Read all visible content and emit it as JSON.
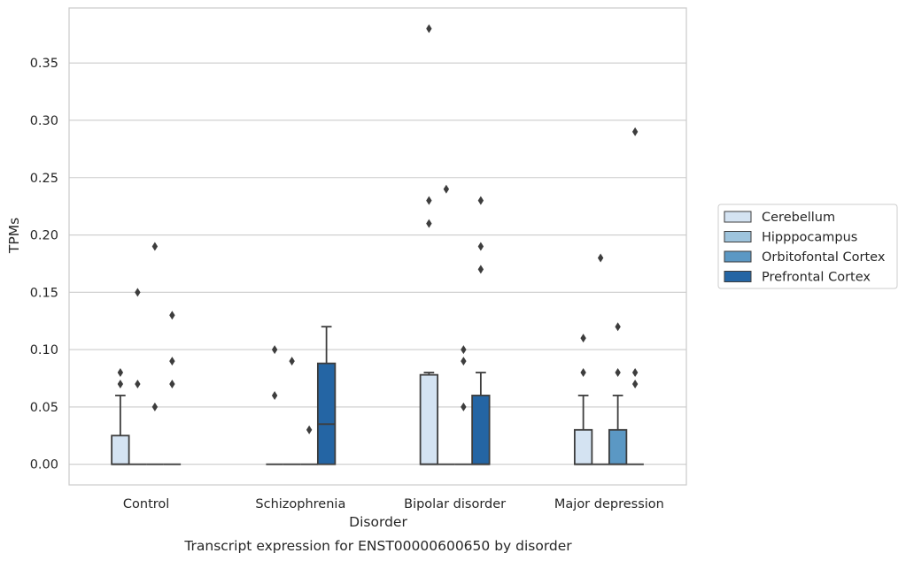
{
  "chart_data": {
    "type": "box",
    "caption": "Transcript expression for ENST00000600650 by disorder",
    "xlabel": "Disorder",
    "ylabel": "TPMs",
    "ylim": [
      -0.018,
      0.398
    ],
    "yticks": [
      "0.00",
      "0.05",
      "0.10",
      "0.15",
      "0.20",
      "0.25",
      "0.30",
      "0.35"
    ],
    "grid": true,
    "legend_position": "right",
    "categories": [
      "Control",
      "Schizophrenia",
      "Bipolar disorder",
      "Major depression"
    ],
    "series": [
      {
        "name": "Cerebellum",
        "color": "#d4e3f2",
        "boxes": [
          {
            "q1": 0.0,
            "median": 0.0,
            "q3": 0.025,
            "whisker_low": 0.0,
            "whisker_high": 0.06,
            "outliers": [
              0.07,
              0.08
            ]
          },
          {
            "q1": 0.0,
            "median": 0.0,
            "q3": 0.0,
            "whisker_low": 0.0,
            "whisker_high": 0.0,
            "outliers": [
              0.06,
              0.1
            ]
          },
          {
            "q1": 0.0,
            "median": 0.0,
            "q3": 0.078,
            "whisker_low": 0.0,
            "whisker_high": 0.08,
            "outliers": [
              0.21,
              0.23,
              0.38
            ]
          },
          {
            "q1": 0.0,
            "median": 0.0,
            "q3": 0.03,
            "whisker_low": 0.0,
            "whisker_high": 0.06,
            "outliers": [
              0.08,
              0.11
            ]
          }
        ]
      },
      {
        "name": "Hipppocampus",
        "color": "#9ec4dd",
        "boxes": [
          {
            "q1": 0.0,
            "median": 0.0,
            "q3": 0.0,
            "whisker_low": 0.0,
            "whisker_high": 0.0,
            "outliers": [
              0.07,
              0.15
            ]
          },
          {
            "q1": 0.0,
            "median": 0.0,
            "q3": 0.0,
            "whisker_low": 0.0,
            "whisker_high": 0.0,
            "outliers": [
              0.09
            ]
          },
          {
            "q1": 0.0,
            "median": 0.0,
            "q3": 0.0,
            "whisker_low": 0.0,
            "whisker_high": 0.0,
            "outliers": [
              0.24
            ]
          },
          {
            "q1": 0.0,
            "median": 0.0,
            "q3": 0.0,
            "whisker_low": 0.0,
            "whisker_high": 0.0,
            "outliers": [
              0.18
            ]
          }
        ]
      },
      {
        "name": "Orbitofontal Cortex",
        "color": "#5b98c4",
        "boxes": [
          {
            "q1": 0.0,
            "median": 0.0,
            "q3": 0.0,
            "whisker_low": 0.0,
            "whisker_high": 0.0,
            "outliers": [
              0.05,
              0.19
            ]
          },
          {
            "q1": 0.0,
            "median": 0.0,
            "q3": 0.0,
            "whisker_low": 0.0,
            "whisker_high": 0.0,
            "outliers": [
              0.03
            ]
          },
          {
            "q1": 0.0,
            "median": 0.0,
            "q3": 0.0,
            "whisker_low": 0.0,
            "whisker_high": 0.0,
            "outliers": [
              0.05,
              0.09,
              0.1
            ]
          },
          {
            "q1": 0.0,
            "median": 0.0,
            "q3": 0.03,
            "whisker_low": 0.0,
            "whisker_high": 0.06,
            "outliers": [
              0.08,
              0.12
            ]
          }
        ]
      },
      {
        "name": "Prefrontal Cortex",
        "color": "#2465a4",
        "boxes": [
          {
            "q1": 0.0,
            "median": 0.0,
            "q3": 0.0,
            "whisker_low": 0.0,
            "whisker_high": 0.0,
            "outliers": [
              0.07,
              0.09,
              0.13
            ]
          },
          {
            "q1": 0.0,
            "median": 0.035,
            "q3": 0.088,
            "whisker_low": 0.0,
            "whisker_high": 0.12,
            "outliers": []
          },
          {
            "q1": 0.0,
            "median": 0.0,
            "q3": 0.06,
            "whisker_low": 0.0,
            "whisker_high": 0.08,
            "outliers": [
              0.17,
              0.19,
              0.23
            ]
          },
          {
            "q1": 0.0,
            "median": 0.0,
            "q3": 0.0,
            "whisker_low": 0.0,
            "whisker_high": 0.0,
            "outliers": [
              0.07,
              0.08,
              0.29
            ]
          }
        ]
      }
    ]
  }
}
